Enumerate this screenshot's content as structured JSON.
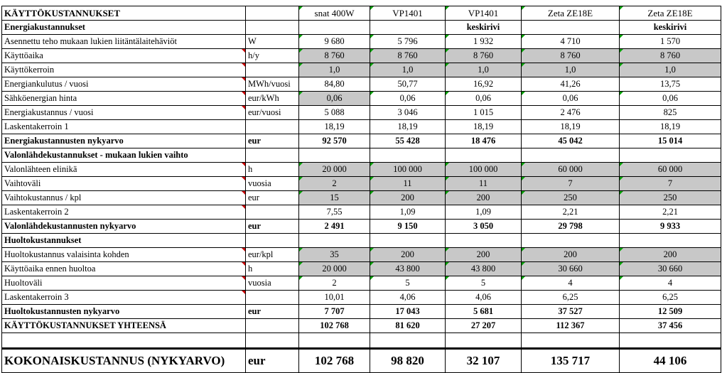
{
  "columns": [
    "snat 400W",
    "VP1401",
    "VP1401",
    "Zeta ZE18E",
    "Zeta ZE18E"
  ],
  "header_label": "KÄYTTÖKUSTANNUKSET",
  "sub_header": {
    "label": "Energiakustannukset",
    "values": [
      "",
      "",
      "keskirivi",
      "",
      "keskirivi"
    ]
  },
  "rows": [
    {
      "label": "Asennettu teho mukaan lukien liitäntälaitehäviöt",
      "unit": "W",
      "values": [
        "9 680",
        "5 796",
        "1 932",
        "4 710",
        "1 570"
      ]
    },
    {
      "label": "Käyttöaika",
      "unit": "h/y",
      "values": [
        "8 760",
        "8 760",
        "8 760",
        "8 760",
        "8 760"
      ]
    },
    {
      "label": "Käyttökerroin",
      "unit": "",
      "values": [
        "1,0",
        "1,0",
        "1,0",
        "1,0",
        "1,0"
      ]
    },
    {
      "label": "Energiankulutus / vuosi",
      "unit": "MWh/vuosi",
      "values": [
        "84,80",
        "50,77",
        "16,92",
        "41,26",
        "13,75"
      ]
    },
    {
      "label": "Sähköenergian hinta",
      "unit": "eur/kWh",
      "values": [
        "0,06",
        "0,06",
        "0,06",
        "0,06",
        "0,06"
      ]
    },
    {
      "label": "Energiakustannus / vuosi",
      "unit": "eur/vuosi",
      "values": [
        "5 088",
        "3 046",
        "1 015",
        "2 476",
        "825"
      ]
    },
    {
      "label": "Laskentakerroin 1",
      "unit": "",
      "values": [
        "18,19",
        "18,19",
        "18,19",
        "18,19",
        "18,19"
      ]
    },
    {
      "label": "Energiakustannusten nykyarvo",
      "unit": "eur",
      "values": [
        "92 570",
        "55 428",
        "18 476",
        "45 042",
        "15 014"
      ]
    },
    {
      "label": "Valonlähdekustannukset - mukaan lukien vaihto",
      "unit": "",
      "values": [
        "",
        "",
        "",
        "",
        ""
      ]
    },
    {
      "label": "Valonlähteen elinikä",
      "unit": "h",
      "values": [
        "20 000",
        "100 000",
        "100 000",
        "60 000",
        "60 000"
      ]
    },
    {
      "label": "Vaihtoväli",
      "unit": "vuosia",
      "values": [
        "2",
        "11",
        "11",
        "7",
        "7"
      ]
    },
    {
      "label": "Vaihtokustannus / kpl",
      "unit": "eur",
      "values": [
        "15",
        "200",
        "200",
        "250",
        "250"
      ]
    },
    {
      "label": "Laskentakerroin 2",
      "unit": "",
      "values": [
        "7,55",
        "1,09",
        "1,09",
        "2,21",
        "2,21"
      ]
    },
    {
      "label": "Valonlähdekustannusten nykyarvo",
      "unit": "eur",
      "values": [
        "2 491",
        "9 150",
        "3 050",
        "29 798",
        "9 933"
      ]
    },
    {
      "label": "Huoltokustannukset",
      "unit": "",
      "values": [
        "",
        "",
        "",
        "",
        ""
      ]
    },
    {
      "label": "Huoltokustannus valaisinta kohden",
      "unit": "eur/kpl",
      "values": [
        "35",
        "200",
        "200",
        "200",
        "200"
      ]
    },
    {
      "label": "Käyttöaika ennen huoltoa",
      "unit": "h",
      "values": [
        "20 000",
        "43 800",
        "43 800",
        "30 660",
        "30 660"
      ]
    },
    {
      "label": "Huoltoväli",
      "unit": "vuosia",
      "values": [
        "2",
        "5",
        "5",
        "4",
        "4"
      ]
    },
    {
      "label": "Laskentakerroin 3",
      "unit": "",
      "values": [
        "10,01",
        "4,06",
        "4,06",
        "6,25",
        "6,25"
      ]
    },
    {
      "label": "Huoltokustannusten nykyarvo",
      "unit": "eur",
      "values": [
        "7 707",
        "17 043",
        "5 681",
        "37 527",
        "12 509"
      ]
    },
    {
      "label": "KÄYTTÖKUSTANNUKSET YHTEENSÄ",
      "unit": "",
      "values": [
        "102 768",
        "81 620",
        "27 207",
        "112 367",
        "37 456"
      ]
    }
  ],
  "total": {
    "label": "KOKONAISKUSTANNUS (NYKYARVO)",
    "unit": "eur",
    "values": [
      "102 768",
      "98 820",
      "32 107",
      "135 717",
      "44 106"
    ]
  },
  "colors": {
    "input_grey": "#c8c8c8",
    "comment_marker": "#cc0000",
    "note_marker": "#00a000"
  }
}
